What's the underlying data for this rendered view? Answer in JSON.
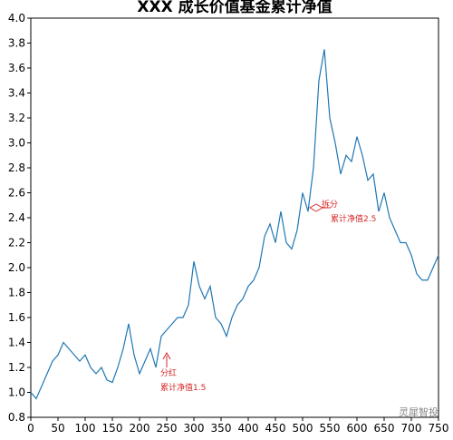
{
  "chart_data": {
    "type": "line",
    "title": "XXX 成长价值基金累计净值",
    "x": [
      0,
      10,
      20,
      30,
      40,
      50,
      60,
      70,
      80,
      90,
      100,
      110,
      120,
      130,
      140,
      150,
      160,
      170,
      180,
      190,
      200,
      210,
      220,
      230,
      240,
      250,
      260,
      270,
      280,
      290,
      300,
      310,
      320,
      330,
      340,
      350,
      360,
      370,
      380,
      390,
      400,
      410,
      420,
      430,
      440,
      450,
      460,
      470,
      480,
      490,
      500,
      510,
      520,
      530,
      540,
      550,
      560,
      570,
      580,
      590,
      600,
      610,
      620,
      630,
      640,
      650,
      660,
      670,
      680,
      690,
      700,
      710,
      720,
      730,
      740,
      750
    ],
    "series": [
      {
        "color": "#1f77b4",
        "values": [
          1.0,
          0.95,
          1.05,
          1.15,
          1.25,
          1.3,
          1.4,
          1.35,
          1.3,
          1.25,
          1.3,
          1.2,
          1.15,
          1.2,
          1.1,
          1.08,
          1.2,
          1.35,
          1.55,
          1.3,
          1.15,
          1.25,
          1.35,
          1.2,
          1.45,
          1.5,
          1.55,
          1.6,
          1.6,
          1.7,
          2.05,
          1.85,
          1.75,
          1.85,
          1.6,
          1.55,
          1.45,
          1.6,
          1.7,
          1.75,
          1.85,
          1.9,
          2.0,
          2.25,
          2.35,
          2.2,
          2.45,
          2.2,
          2.15,
          2.3,
          2.6,
          2.45,
          2.8,
          3.5,
          3.75,
          3.2,
          3.0,
          2.75,
          2.9,
          2.85,
          3.05,
          2.9,
          2.7,
          2.75,
          2.45,
          2.6,
          2.4,
          2.3,
          2.2,
          2.2,
          2.1,
          1.95,
          1.9,
          1.9,
          2.0,
          2.1
        ]
      }
    ],
    "xlim": [
      0,
      750
    ],
    "xticks": [
      0,
      50,
      100,
      150,
      200,
      250,
      300,
      350,
      400,
      450,
      500,
      550,
      600,
      650,
      700,
      750
    ],
    "ylim": [
      0.8,
      4.0
    ],
    "yticks": [
      {
        "value": 0.8,
        "label": "0.8"
      },
      {
        "value": 1,
        "label": "1.0"
      },
      {
        "value": 1.2,
        "label": "1.2"
      },
      {
        "value": 1.4,
        "label": "1.4"
      },
      {
        "value": 1.6,
        "label": "1.6"
      },
      {
        "value": 1.8,
        "label": "1.8"
      },
      {
        "value": 2,
        "label": "2.0"
      },
      {
        "value": 2.2,
        "label": "2.2"
      },
      {
        "value": 2.4,
        "label": "2.4"
      },
      {
        "value": 2.6,
        "label": "2.6"
      },
      {
        "value": 2.8,
        "label": "2.8"
      },
      {
        "value": 3,
        "label": "3.0"
      },
      {
        "value": 3.2,
        "label": "3.2"
      },
      {
        "value": 3.4,
        "label": "3.4"
      },
      {
        "value": 3.6,
        "label": "3.6"
      },
      {
        "value": 3.8,
        "label": "3.8"
      },
      {
        "value": 4,
        "label": "4.0"
      }
    ],
    "annotations": [
      {
        "text": "拆分",
        "sub": "累计净值2.5"
      },
      {
        "text": "分红",
        "sub": "累计净值1.5"
      }
    ],
    "watermark": "灵犀智投"
  }
}
